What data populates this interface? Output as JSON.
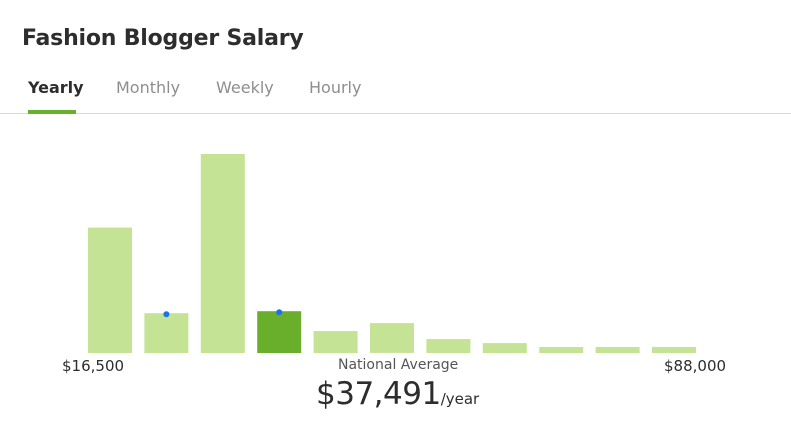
{
  "page": {
    "title": "Fashion Blogger Salary"
  },
  "tabs": [
    {
      "label": "Yearly",
      "active": true
    },
    {
      "label": "Monthly",
      "active": false
    },
    {
      "label": "Weekly",
      "active": false
    },
    {
      "label": "Hourly",
      "active": false
    }
  ],
  "colors": {
    "bar": "#c4e394",
    "bar_highlight": "#6aaf2c",
    "marker": "#1a73e8",
    "tab_accent": "#6aaf2c"
  },
  "chart_data": {
    "type": "bar",
    "xlabel": "",
    "ylabel": "",
    "x_min_label": "$16,500",
    "x_max_label": "$88,000",
    "values": [
      63,
      20,
      100,
      21,
      11,
      15,
      7,
      5,
      3,
      3,
      3
    ],
    "highlight_index": 3,
    "marker_indices": [
      1,
      3
    ],
    "ylim": [
      0,
      100
    ],
    "grid": false
  },
  "summary": {
    "label": "National Average",
    "amount": "$37,491",
    "unit": "/year"
  }
}
